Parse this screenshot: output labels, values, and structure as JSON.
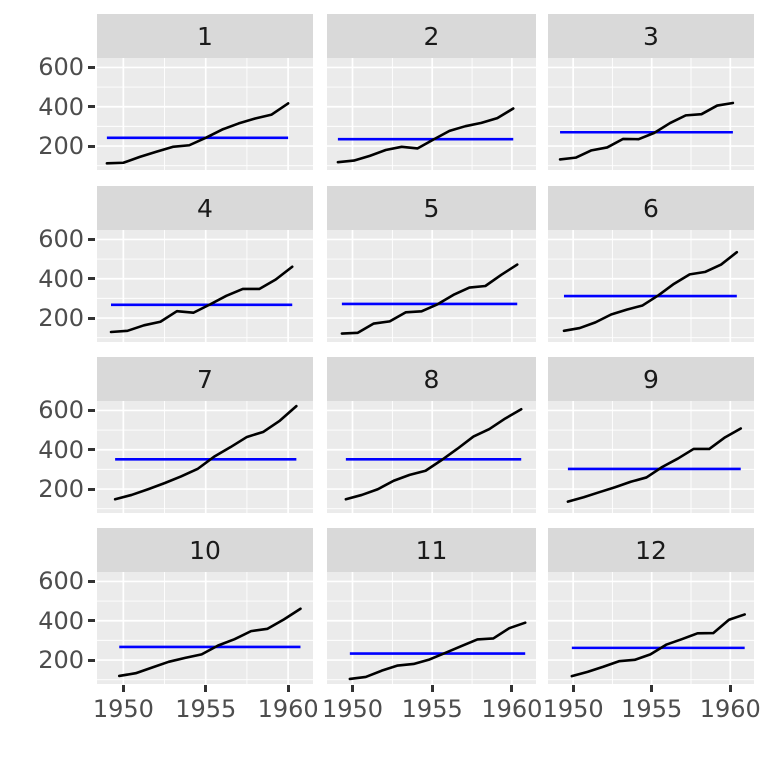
{
  "chart_data": {
    "type": "line",
    "title": "",
    "description": "Faceted line chart, 12 panels labeled 1-12 (months). Black line: monthly airline passengers per year 1949-1960; blue horizontal line: the facet mean.",
    "x_years": [
      1949,
      1950,
      1951,
      1952,
      1953,
      1954,
      1955,
      1956,
      1957,
      1958,
      1959,
      1960
    ],
    "x_ticks": [
      1950,
      1955,
      1960
    ],
    "y_ticks": [
      200,
      400,
      600
    ],
    "x_minor": [
      1952.5,
      1957.5
    ],
    "y_minor": [
      100,
      300,
      500
    ],
    "xlim": [
      1948.4,
      1961.51
    ],
    "ylim": [
      78.1,
      647.9
    ],
    "grid": "white major/minor gridlines on grey panel",
    "legend": "none",
    "facets": [
      {
        "label": "1",
        "values": [
          112,
          115,
          145,
          171,
          196,
          204,
          242,
          284,
          315,
          340,
          360,
          417
        ],
        "mean": 241.75
      },
      {
        "label": "2",
        "values": [
          118,
          126,
          150,
          180,
          196,
          188,
          233,
          277,
          301,
          318,
          342,
          391
        ],
        "mean": 235.0
      },
      {
        "label": "3",
        "values": [
          132,
          141,
          178,
          193,
          236,
          235,
          267,
          317,
          356,
          362,
          406,
          419
        ],
        "mean": 270.17
      },
      {
        "label": "4",
        "values": [
          129,
          135,
          163,
          181,
          235,
          227,
          269,
          313,
          348,
          348,
          396,
          461
        ],
        "mean": 267.08
      },
      {
        "label": "5",
        "values": [
          121,
          125,
          172,
          183,
          229,
          234,
          270,
          318,
          355,
          363,
          420,
          472
        ],
        "mean": 271.83
      },
      {
        "label": "6",
        "values": [
          135,
          149,
          178,
          218,
          243,
          264,
          315,
          374,
          422,
          435,
          472,
          535
        ],
        "mean": 311.67
      },
      {
        "label": "7",
        "values": [
          148,
          170,
          199,
          230,
          264,
          302,
          364,
          413,
          465,
          491,
          548,
          622
        ],
        "mean": 351.33
      },
      {
        "label": "8",
        "values": [
          148,
          170,
          199,
          242,
          272,
          293,
          347,
          405,
          467,
          505,
          559,
          606
        ],
        "mean": 351.08
      },
      {
        "label": "9",
        "values": [
          136,
          158,
          184,
          209,
          237,
          259,
          312,
          355,
          404,
          404,
          463,
          508
        ],
        "mean": 302.42
      },
      {
        "label": "10",
        "values": [
          119,
          133,
          162,
          191,
          211,
          229,
          274,
          306,
          347,
          359,
          407,
          461
        ],
        "mean": 266.58
      },
      {
        "label": "11",
        "values": [
          104,
          114,
          146,
          172,
          180,
          203,
          237,
          271,
          305,
          310,
          362,
          390
        ],
        "mean": 232.83
      },
      {
        "label": "12",
        "values": [
          118,
          140,
          166,
          194,
          201,
          229,
          278,
          306,
          336,
          337,
          405,
          432
        ],
        "mean": 261.83
      }
    ],
    "colors": {
      "data_line": "#000000",
      "mean_line": "#0000FF",
      "panel_bg": "#EBEBEB",
      "strip_bg": "#D9D9D9",
      "grid": "#FFFFFF",
      "axis_text": "#4D4D4D",
      "strip_text": "#1A1A1A",
      "tick_mark": "#333333",
      "background": "#FFFFFF"
    }
  }
}
